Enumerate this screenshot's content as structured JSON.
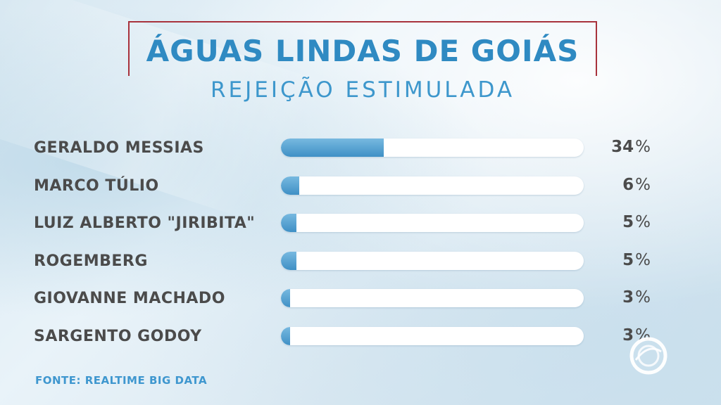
{
  "header": {
    "title": "ÁGUAS LINDAS DE GOIÁS",
    "subtitle": "REJEIÇÃO ESTIMULADA"
  },
  "chart_data": {
    "type": "bar",
    "orientation": "horizontal",
    "categories": [
      "GERALDO MESSIAS",
      "MARCO TÚLIO",
      "LUIZ ALBERTO \"JIRIBITA\"",
      "ROGEMBERG",
      "GIOVANNE MACHADO",
      "SARGENTO GODOY"
    ],
    "values": [
      34,
      6,
      5,
      5,
      3,
      3
    ],
    "value_labels": [
      "34",
      "6",
      "5",
      "5",
      "3",
      "3"
    ],
    "unit": "%",
    "xlim": [
      0,
      100
    ],
    "grid": false,
    "legend": "none",
    "colors": {
      "bar_fill": "#4e9ccf",
      "track": "#ffffff",
      "text": "#4b4b4b"
    }
  },
  "footer": {
    "source": "FONTE: REALTIME BIG DATA"
  },
  "colors": {
    "title": "#2f8ac2",
    "frame": "#a8323c",
    "source": "#3f97cf"
  },
  "icons": {
    "watermark": "broadcaster-logo-icon"
  }
}
